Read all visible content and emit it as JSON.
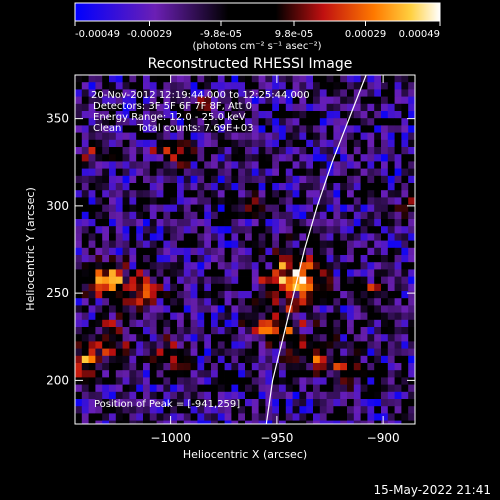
{
  "colorbar": {
    "ticks": [
      "-0.00049",
      "-0.00029",
      "-9.8e-05",
      "9.8e-05",
      "0.00029",
      "0.00049"
    ],
    "tick_values": [
      -0.00049,
      -0.00029,
      -9.8e-05,
      9.8e-05,
      0.00029,
      0.00049
    ],
    "range": [
      -0.00049,
      0.00049
    ],
    "units": "(photons cm⁻² s⁻¹ asec⁻²)",
    "colors": [
      "#0000ff",
      "#6b1fb4",
      "#000000",
      "#c01010",
      "#ff7a00",
      "#ffd040",
      "#ffffff"
    ]
  },
  "chart_data": {
    "type": "heatmap",
    "title": "Reconstructed RHESSI Image",
    "xlabel": "Heliocentric X (arcsec)",
    "ylabel": "Heliocentric Y (arcsec)",
    "xlim": [
      -1045,
      -885
    ],
    "ylim": [
      175,
      375
    ],
    "x_ticks": [
      -1000,
      -950,
      -900
    ],
    "x_tick_labels": [
      "−1000",
      "−950",
      "−900"
    ],
    "y_ticks": [
      200,
      250,
      300,
      350
    ],
    "y_tick_labels": [
      "200",
      "250",
      "300",
      "350"
    ],
    "peak": [
      -941,
      259
    ],
    "limb_curve": [
      [
        -955,
        175
      ],
      [
        -952,
        200
      ],
      [
        -947,
        225
      ],
      [
        -942,
        250
      ],
      [
        -937,
        275
      ],
      [
        -931,
        300
      ],
      [
        -924,
        325
      ],
      [
        -916,
        350
      ],
      [
        -908,
        375
      ]
    ],
    "grid": false
  },
  "annotations": {
    "time_range": "20-Nov-2012 12:19:44.000 to 12:25:44.000",
    "detectors": "Detectors: 3F 5F 6F 7F 8F, Att 0",
    "energy": "Energy Range: 12.0 - 25.0 keV",
    "clean": "Clean     Total counts: 7.69E+03",
    "peak_text": "Position of Peak = [-941,259]"
  },
  "footer": {
    "timestamp": "15-May-2022 21:41"
  }
}
